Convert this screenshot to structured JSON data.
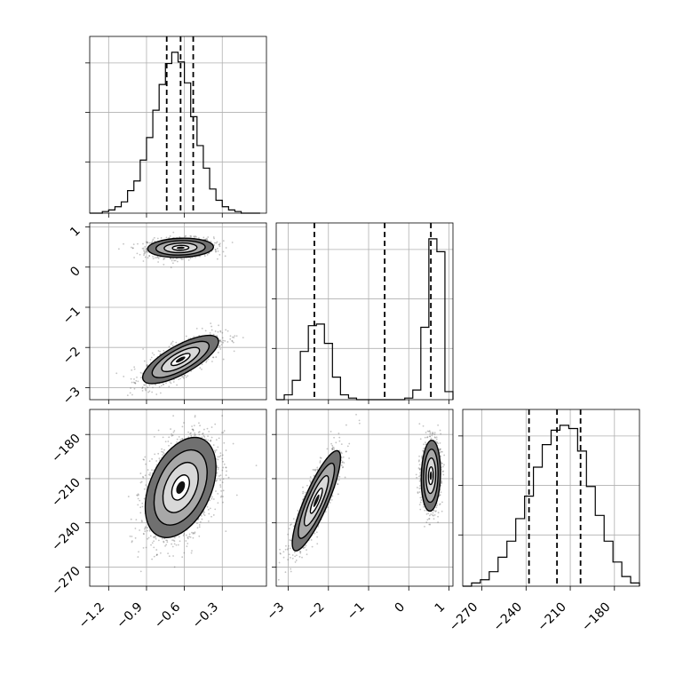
{
  "chart_data": {
    "type": "corner",
    "parameters": [
      {
        "name": "",
        "range": [
          -1.35,
          0.05
        ],
        "ticks": [
          -1.2,
          -0.9,
          -0.6,
          -0.3
        ],
        "tick_labels": [
          "−1.2",
          "−0.9",
          "−0.6",
          "−0.3"
        ]
      },
      {
        "name": "",
        "range": [
          -3.3,
          1.1
        ],
        "ticks": [
          -3,
          -2,
          -1,
          0,
          1
        ],
        "tick_labels": [
          "−3",
          "−2",
          "−1",
          "0",
          "1"
        ]
      },
      {
        "name": "",
        "range": [
          -283,
          -163
        ],
        "ticks": [
          -270,
          -240,
          -210,
          -180
        ],
        "tick_labels": [
          "−270",
          "−240",
          "−210",
          "−180"
        ]
      }
    ],
    "marginals": [
      {
        "param": 0,
        "bins": [
          -1.35,
          -1.3,
          -1.25,
          -1.2,
          -1.15,
          -1.1,
          -1.05,
          -1.0,
          -0.95,
          -0.9,
          -0.85,
          -0.8,
          -0.75,
          -0.7,
          -0.65,
          -0.6,
          -0.55,
          -0.5,
          -0.45,
          -0.4,
          -0.35,
          -0.3,
          -0.25,
          -0.2,
          -0.15,
          -0.1,
          -0.05,
          0.0
        ],
        "counts": [
          0,
          0,
          0.01,
          0.02,
          0.04,
          0.07,
          0.14,
          0.2,
          0.33,
          0.47,
          0.64,
          0.8,
          0.93,
          1.0,
          0.94,
          0.81,
          0.6,
          0.42,
          0.28,
          0.15,
          0.08,
          0.04,
          0.02,
          0.01,
          0,
          0,
          0
        ],
        "quantiles": [
          -0.74,
          -0.63,
          -0.53
        ]
      },
      {
        "param": 1,
        "bins": [
          -3.3,
          -3.1,
          -2.9,
          -2.7,
          -2.5,
          -2.3,
          -2.1,
          -1.9,
          -1.7,
          -1.5,
          -1.3,
          -1.1,
          -0.9,
          -0.7,
          -0.5,
          -0.3,
          -0.1,
          0.1,
          0.3,
          0.5,
          0.7,
          0.9,
          1.1
        ],
        "counts": [
          0,
          0.03,
          0.12,
          0.3,
          0.46,
          0.47,
          0.35,
          0.14,
          0.03,
          0.01,
          0,
          0,
          0,
          0,
          0,
          0,
          0.01,
          0.06,
          0.45,
          1.0,
          0.92,
          0.05
        ],
        "quantiles": [
          -2.35,
          -0.6,
          0.55
        ]
      },
      {
        "param": 2,
        "bins": [
          -283,
          -277,
          -271,
          -265,
          -259,
          -253,
          -247,
          -241,
          -235,
          -229,
          -223,
          -217,
          -211,
          -205,
          -199,
          -193,
          -187,
          -181,
          -175,
          -169,
          -163
        ],
        "counts": [
          0,
          0.02,
          0.04,
          0.09,
          0.18,
          0.28,
          0.42,
          0.56,
          0.74,
          0.88,
          0.97,
          1.0,
          0.98,
          0.84,
          0.62,
          0.44,
          0.28,
          0.15,
          0.06,
          0.02
        ],
        "quantiles": [
          -238,
          -219,
          -203
        ]
      }
    ],
    "joint": [
      {
        "x": 0,
        "y": 1,
        "modes": [
          {
            "mean": [
              -0.63,
              0.48
            ],
            "sd": [
              0.13,
              0.12
            ],
            "rho": 0.1,
            "weight": 0.5
          },
          {
            "mean": [
              -0.63,
              -2.3
            ],
            "sd": [
              0.15,
              0.3
            ],
            "rho": 0.75,
            "weight": 0.5
          }
        ]
      },
      {
        "x": 0,
        "y": 2,
        "modes": [
          {
            "mean": [
              -0.63,
              -216
            ],
            "sd": [
              0.14,
              17
            ],
            "rho": 0.4,
            "weight": 1.0
          }
        ]
      },
      {
        "x": 1,
        "y": 2,
        "modes": [
          {
            "mean": [
              -2.3,
              -225
            ],
            "sd": [
              0.3,
              17
            ],
            "rho": 0.85,
            "weight": 0.5
          },
          {
            "mean": [
              0.55,
              -208
            ],
            "sd": [
              0.12,
              12
            ],
            "rho": 0.1,
            "weight": 0.5
          }
        ]
      }
    ],
    "contour_levels": [
      0.5,
      1.0,
      1.5,
      2.0
    ],
    "grid": true,
    "colors": {
      "line": "#000000",
      "grid": "#b0b0b0",
      "scatter": "#555555"
    }
  }
}
